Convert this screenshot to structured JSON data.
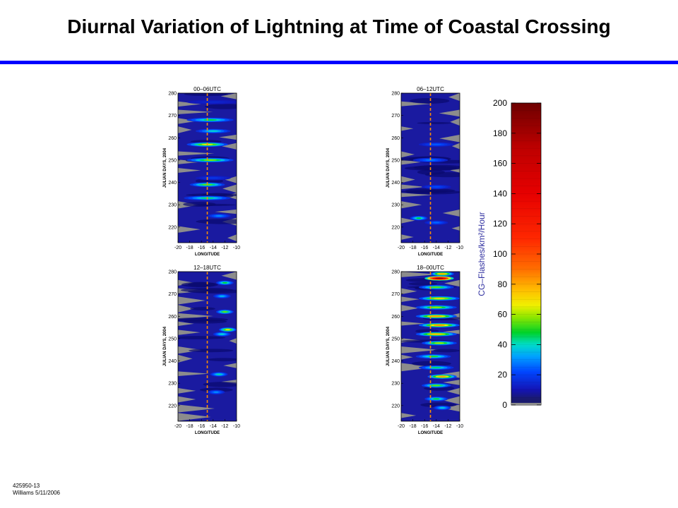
{
  "title": "Diurnal Variation of Lightning at Time of Coastal Crossing",
  "footer": {
    "line1": "425950-13",
    "line2": "Williams 5/11/2006"
  },
  "colors": {
    "title_rule": "#0000ff",
    "no_data": "#8c8c8c",
    "base": "#1a1aa0",
    "marker": "#ff8c00"
  },
  "chart_data": [
    {
      "type": "heatmap",
      "title": "00–06UTC",
      "xlabel": "LONGITUDE",
      "ylabel": "JULIAN DAYS, 2004",
      "xticks": [
        "-20",
        "-18",
        "-16",
        "-14",
        "-12",
        "-10"
      ],
      "yticks": [
        "280",
        "270",
        "260",
        "250",
        "240",
        "230",
        "220"
      ],
      "xlim": [
        -20,
        -10
      ],
      "ylim": [
        213,
        280
      ],
      "marker_longitude": -15,
      "features": [
        {
          "day": 276,
          "lon": -14,
          "width": 9,
          "value": 14
        },
        {
          "day": 268,
          "lon": -14.5,
          "width": 8,
          "value": 48
        },
        {
          "day": 263,
          "lon": -14,
          "width": 6,
          "value": 40
        },
        {
          "day": 257,
          "lon": -15,
          "width": 7,
          "value": 68
        },
        {
          "day": 250,
          "lon": -14.5,
          "width": 8,
          "value": 58
        },
        {
          "day": 242,
          "lon": -14,
          "width": 6,
          "value": 18
        },
        {
          "day": 239,
          "lon": -15,
          "width": 6,
          "value": 55
        },
        {
          "day": 233,
          "lon": -15,
          "width": 8,
          "value": 45
        },
        {
          "day": 225,
          "lon": -13,
          "width": 4,
          "value": 30
        }
      ]
    },
    {
      "type": "heatmap",
      "title": "06–12UTC",
      "xlabel": "LONGITUDE",
      "ylabel": "JULIAN DAYS, 2004",
      "xticks": [
        "-20",
        "-18",
        "-16",
        "-14",
        "-12",
        "-10"
      ],
      "yticks": [
        "280",
        "270",
        "260",
        "250",
        "240",
        "230",
        "220"
      ],
      "xlim": [
        -20,
        -10
      ],
      "ylim": [
        213,
        280
      ],
      "marker_longitude": -15,
      "features": [
        {
          "day": 257,
          "lon": -14,
          "width": 6,
          "value": 24
        },
        {
          "day": 250,
          "lon": -15,
          "width": 6,
          "value": 28
        },
        {
          "day": 238,
          "lon": -14,
          "width": 5,
          "value": 22
        },
        {
          "day": 224,
          "lon": -17,
          "width": 3,
          "value": 48
        },
        {
          "day": 222,
          "lon": -14,
          "width": 4,
          "value": 26
        }
      ]
    },
    {
      "type": "heatmap",
      "title": "12–18UTC",
      "xlabel": "LONGITUDE",
      "ylabel": "JULIAN DAYS, 2004",
      "xticks": [
        "-20",
        "-18",
        "-16",
        "-14",
        "-12",
        "-10"
      ],
      "yticks": [
        "280",
        "270",
        "260",
        "250",
        "240",
        "230",
        "220"
      ],
      "xlim": [
        -20,
        -10
      ],
      "ylim": [
        213,
        280
      ],
      "marker_longitude": -15,
      "features": [
        {
          "day": 275,
          "lon": -12,
          "width": 3,
          "value": 48
        },
        {
          "day": 269,
          "lon": -12.5,
          "width": 3,
          "value": 35
        },
        {
          "day": 262,
          "lon": -12,
          "width": 3,
          "value": 55
        },
        {
          "day": 254,
          "lon": -11.5,
          "width": 3,
          "value": 68
        },
        {
          "day": 252,
          "lon": -12.5,
          "width": 3,
          "value": 40
        },
        {
          "day": 234,
          "lon": -13,
          "width": 3,
          "value": 42
        },
        {
          "day": 226,
          "lon": -13.5,
          "width": 3,
          "value": 30
        }
      ]
    },
    {
      "type": "heatmap",
      "title": "18–00UTC",
      "xlabel": "LONGITUDE",
      "ylabel": "JULIAN DAYS, 2004",
      "xticks": [
        "-20",
        "-18",
        "-16",
        "-14",
        "-12",
        "-10"
      ],
      "yticks": [
        "280",
        "270",
        "260",
        "250",
        "240",
        "230",
        "220"
      ],
      "xlim": [
        -20,
        -10
      ],
      "ylim": [
        213,
        280
      ],
      "marker_longitude": -15,
      "features": [
        {
          "day": 279,
          "lon": -13,
          "width": 4,
          "value": 80
        },
        {
          "day": 277,
          "lon": -13.5,
          "width": 5,
          "value": 180
        },
        {
          "day": 273,
          "lon": -14,
          "width": 6,
          "value": 55
        },
        {
          "day": 268,
          "lon": -13.5,
          "width": 7,
          "value": 72
        },
        {
          "day": 264,
          "lon": -14,
          "width": 7,
          "value": 60
        },
        {
          "day": 260,
          "lon": -14,
          "width": 7,
          "value": 82
        },
        {
          "day": 256,
          "lon": -13.5,
          "width": 7,
          "value": 85
        },
        {
          "day": 252,
          "lon": -14,
          "width": 7,
          "value": 78
        },
        {
          "day": 248,
          "lon": -13.5,
          "width": 6,
          "value": 62
        },
        {
          "day": 242,
          "lon": -14.5,
          "width": 6,
          "value": 50
        },
        {
          "day": 237,
          "lon": -14,
          "width": 6,
          "value": 45
        },
        {
          "day": 233,
          "lon": -13,
          "width": 5,
          "value": 82
        },
        {
          "day": 229,
          "lon": -14,
          "width": 5,
          "value": 55
        },
        {
          "day": 223,
          "lon": -14,
          "width": 4,
          "value": 48
        },
        {
          "day": 219,
          "lon": -13,
          "width": 3,
          "value": 38
        }
      ]
    }
  ],
  "colorbar": {
    "label": "CG–Flashes/km²/Hour",
    "min": 0,
    "max": 200,
    "ticks": [
      "0",
      "20",
      "40",
      "60",
      "80",
      "100",
      "120",
      "140",
      "160",
      "180",
      "200"
    ]
  }
}
